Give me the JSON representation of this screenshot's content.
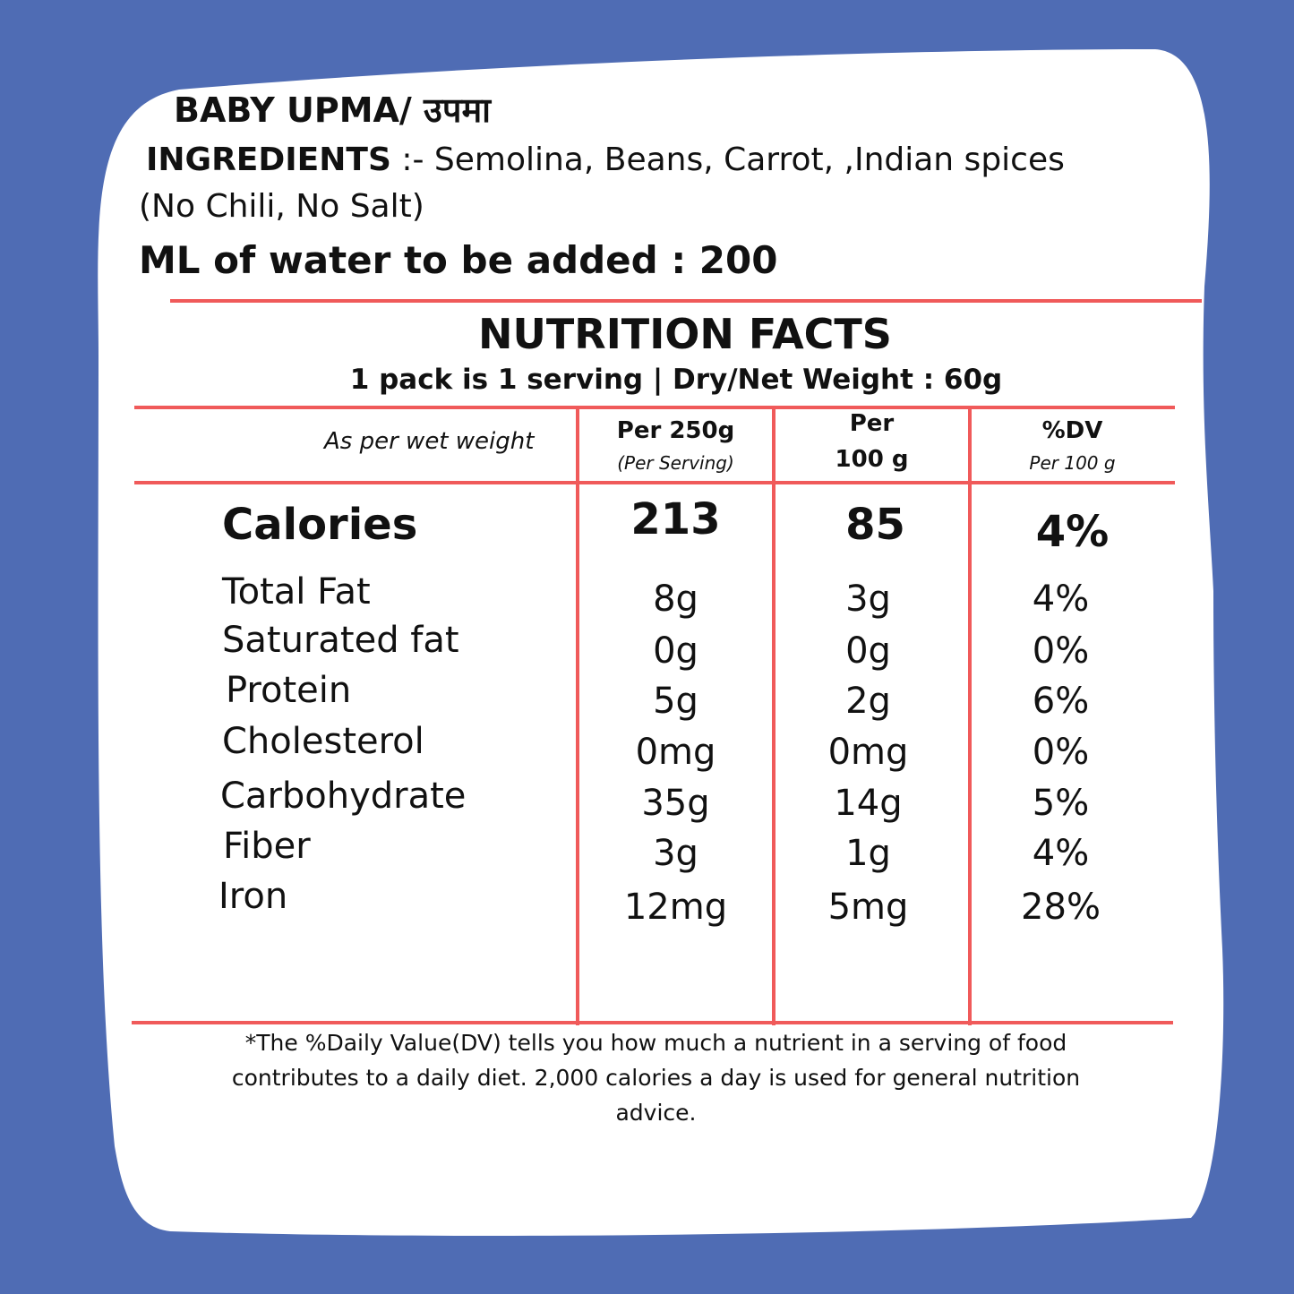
{
  "colors": {
    "background": "#4f6cb4",
    "card": "#ffffff",
    "rule": "#f05a5a",
    "text": "#111111"
  },
  "product": {
    "title": "BABY UPMA/  उपमा",
    "ingredients_label": "INGREDIENTS",
    "ingredients_text": " :- Semolina, Beans, Carrot, ,Indian spices",
    "ingredients_note": "(No Chili, No Salt)",
    "water_text": "ML of water to be added : 200"
  },
  "facts": {
    "heading": "NUTRITION FACTS",
    "serving": "1 pack is 1 serving | Dry/Net  Weight : 60g",
    "basis": "As per wet weight",
    "col1_title": "Per 250g",
    "col1_sub": "(Per Serving)",
    "col2_title_a": "Per",
    "col2_title_b": "100 g",
    "col3_title": "%DV",
    "col3_sub": "Per 100 g",
    "calories": {
      "label": "Calories",
      "per_serving": "213",
      "per_100g": "85",
      "dv": "4%"
    },
    "rows": [
      {
        "label": "Total Fat",
        "per_serving": "8g",
        "per_100g": "3g",
        "dv": "4%"
      },
      {
        "label": "Saturated fat",
        "per_serving": "0g",
        "per_100g": "0g",
        "dv": "0%"
      },
      {
        "label": "Protein",
        "per_serving": "5g",
        "per_100g": "2g",
        "dv": "6%"
      },
      {
        "label": "Cholesterol",
        "per_serving": "0mg",
        "per_100g": "0mg",
        "dv": "0%"
      },
      {
        "label": "Carbohydrate",
        "per_serving": "35g",
        "per_100g": "14g",
        "dv": "5%"
      },
      {
        "label": "Fiber",
        "per_serving": "3g",
        "per_100g": "1g",
        "dv": "4%"
      },
      {
        "label": "Iron",
        "per_serving": "12mg",
        "per_100g": "5mg",
        "dv": "28%"
      }
    ],
    "footnote_1": "*The %Daily Value(DV) tells you how much a nutrient in a serving of food",
    "footnote_2": "contributes to a daily diet. 2,000 calories a day is used for general nutrition",
    "footnote_3": "advice."
  }
}
